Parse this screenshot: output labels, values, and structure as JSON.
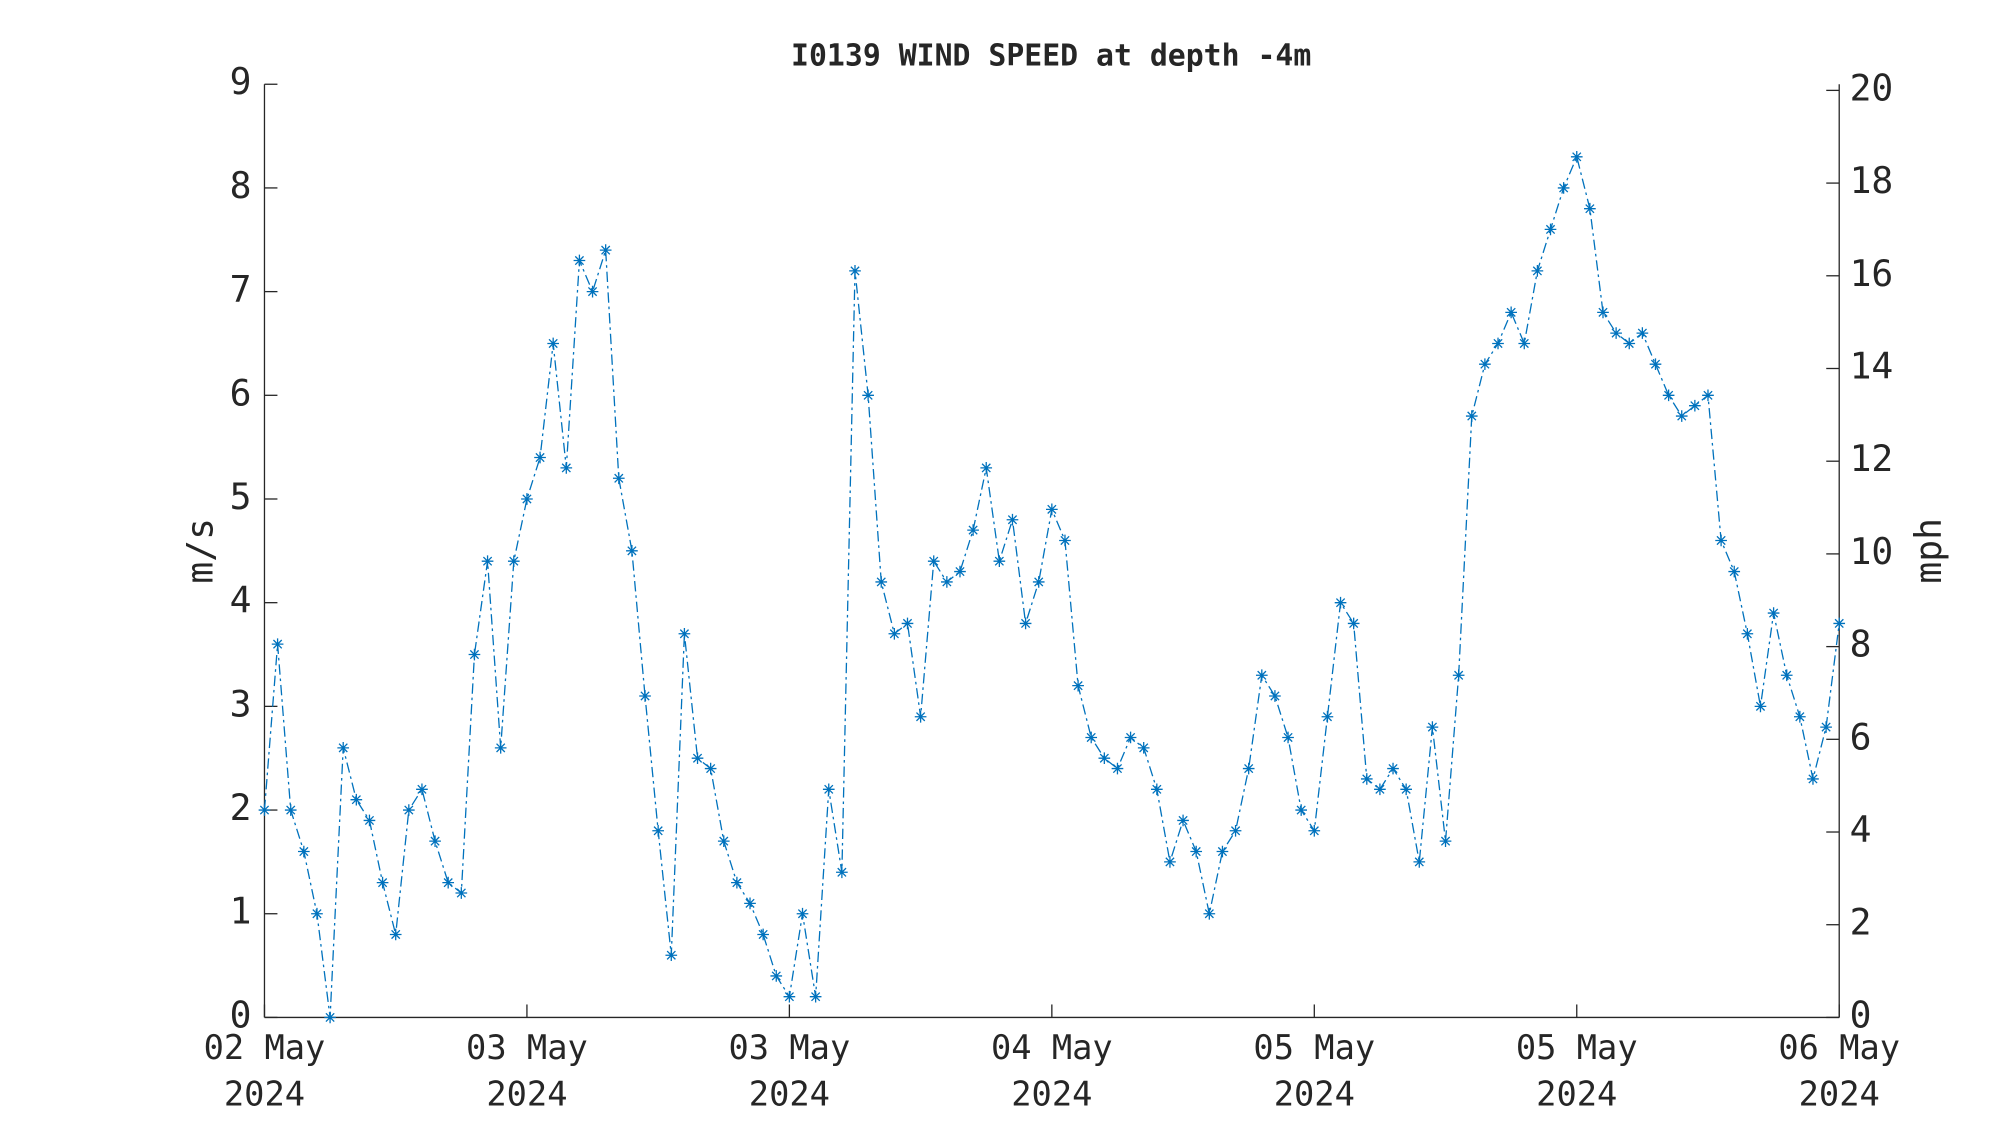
{
  "chart_data": {
    "type": "line",
    "title": "I0139 WIND SPEED at depth -4m",
    "y_label": "m/s",
    "y2_label": "mph",
    "x": [
      0,
      0.8,
      1.6,
      2.4,
      3.2,
      4.0,
      4.8,
      5.6,
      6.4,
      7.2,
      8.0,
      8.8,
      9.6,
      10.4,
      11.2,
      12.0,
      12.8,
      13.6,
      14.4,
      15.2,
      16.0,
      16.8,
      17.6,
      18.4,
      19.2,
      20.0,
      20.8,
      21.6,
      22.4,
      23.2,
      24.0,
      24.8,
      25.6,
      26.4,
      27.2,
      28.0,
      28.8,
      29.6,
      30.4,
      31.2,
      32.0,
      32.8,
      33.6,
      34.4,
      35.2,
      36.0,
      36.8,
      37.6,
      38.4,
      39.2,
      40.0,
      40.8,
      41.6,
      42.4,
      43.2,
      44.0,
      44.8,
      45.6,
      46.4,
      47.2,
      48.0,
      48.8,
      49.6,
      50.4,
      51.2,
      52.0,
      52.8,
      53.6,
      54.4,
      55.2,
      56.0,
      56.8,
      57.6,
      58.4,
      59.2,
      60.0,
      60.8,
      61.6,
      62.4,
      63.2,
      64.0,
      64.8,
      65.6,
      66.4,
      67.2,
      68.0,
      68.8,
      69.6,
      70.4,
      71.2,
      72.0,
      72.8,
      73.6,
      74.4,
      75.2,
      76.0,
      76.8,
      77.6,
      78.4,
      79.2,
      80.0,
      80.8,
      81.6,
      82.4,
      83.2,
      84.0,
      84.8,
      85.6,
      86.4,
      87.2,
      88.0,
      88.8,
      89.6,
      90.4,
      91.2,
      92.0,
      92.8,
      93.6,
      94.4,
      95.2,
      96.0
    ],
    "series": [
      {
        "name": "wind speed",
        "color": "#0072bd",
        "values": [
          2.0,
          3.6,
          2.0,
          1.6,
          1.0,
          0.0,
          2.6,
          2.1,
          1.9,
          1.3,
          0.8,
          2.0,
          2.2,
          1.7,
          1.3,
          1.2,
          3.5,
          4.4,
          2.6,
          4.4,
          5.0,
          5.4,
          6.5,
          5.3,
          7.3,
          7.0,
          7.4,
          5.2,
          4.5,
          3.1,
          1.8,
          0.6,
          3.7,
          2.5,
          2.4,
          1.7,
          1.3,
          1.1,
          0.8,
          0.4,
          0.2,
          1.0,
          0.2,
          2.2,
          1.4,
          7.2,
          6.0,
          4.2,
          3.7,
          3.8,
          2.9,
          4.4,
          4.2,
          4.3,
          4.7,
          5.3,
          4.4,
          4.8,
          3.8,
          4.2,
          4.9,
          4.6,
          3.2,
          2.7,
          2.5,
          2.4,
          2.7,
          2.6,
          2.2,
          1.5,
          1.9,
          1.6,
          1.0,
          1.6,
          1.8,
          2.4,
          3.3,
          3.1,
          2.7,
          2.0,
          1.8,
          2.9,
          4.0,
          3.8,
          2.3,
          2.2,
          2.4,
          2.2,
          1.5,
          2.8,
          1.7,
          3.3,
          5.8,
          6.3,
          6.5,
          6.8,
          6.5,
          7.2,
          7.6,
          8.0,
          8.3,
          7.8,
          6.8,
          6.6,
          6.5,
          6.6,
          6.3,
          6.0,
          5.8,
          5.9,
          6.0,
          4.6,
          4.3,
          3.7,
          3.0,
          3.9,
          3.3,
          2.9,
          2.3,
          2.8,
          3.8
        ]
      }
    ],
    "xlim": [
      0,
      96
    ],
    "xticks": [
      {
        "value": 0,
        "label": "02 May\n2024"
      },
      {
        "value": 16,
        "label": "03 May\n2024"
      },
      {
        "value": 32,
        "label": "03 May\n2024"
      },
      {
        "value": 48,
        "label": "04 May\n2024"
      },
      {
        "value": 64,
        "label": "05 May\n2024"
      },
      {
        "value": 80,
        "label": "05 May\n2024"
      },
      {
        "value": 96,
        "label": "06 May\n2024"
      }
    ],
    "ylim": [
      0,
      9
    ],
    "yticks": [
      0,
      1,
      2,
      3,
      4,
      5,
      6,
      7,
      8,
      9
    ],
    "y2lim": [
      0,
      20.1324
    ],
    "y2ticks": [
      0,
      2,
      4,
      6,
      8,
      10,
      12,
      14,
      16,
      18,
      20
    ]
  }
}
